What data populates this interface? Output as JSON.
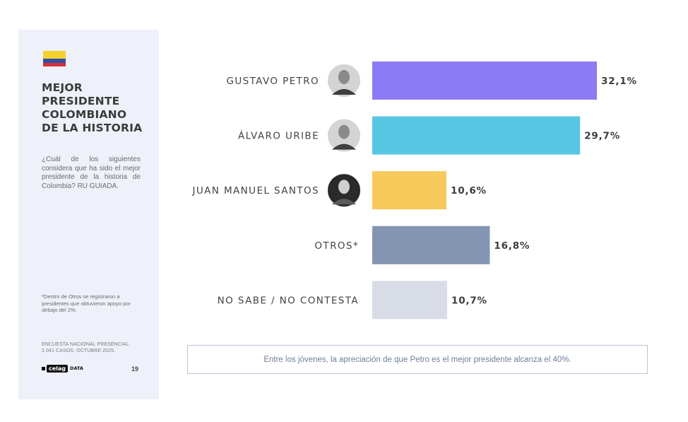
{
  "sidebar": {
    "title": "MEJOR\nPRESIDENTE\nCOLOMBIANO\nDE LA HISTORIA",
    "question": "¿Cuál de los siguientes considera que ha sido el mejor presidente de la historia de Colombia? RU GUIADA.",
    "footnote": "*Dentro de Otros se registraron a presidentes que obtuvieron apoyo por debajo del 2%.",
    "source": "ENCUESTA NACIONAL PRESENCIAL.\n2.041 CASOS. OCTUBRE 2025.",
    "logo_text": "celag",
    "logo_sub": "DATA",
    "page_number": "19",
    "flag_colors": [
      "#f5d130",
      "#2f4fa3",
      "#d62e3a"
    ]
  },
  "chart_data": {
    "type": "bar",
    "orientation": "horizontal",
    "categories": [
      "GUSTAVO PETRO",
      "ÁLVARO URIBE",
      "JUAN MANUEL SANTOS",
      "OTROS*",
      "NO SABE / NO CONTESTA"
    ],
    "values": [
      32.1,
      29.7,
      10.6,
      16.8,
      10.7
    ],
    "value_labels": [
      "32,1%",
      "29,7%",
      "10,6%",
      "16,8%",
      "10,7%"
    ],
    "colors": [
      "#8b7bf5",
      "#57c7e3",
      "#f7c95a",
      "#8495b2",
      "#d7dce6"
    ],
    "portraits": [
      "petro-portrait-icon",
      "uribe-portrait-icon",
      "santos-portrait-icon",
      null,
      null
    ],
    "xlim": [
      0,
      32.1
    ],
    "grid": false
  },
  "note": "Entre los jóvenes, la apreciación de que Petro es el mejor presidente alcanza el 40%."
}
